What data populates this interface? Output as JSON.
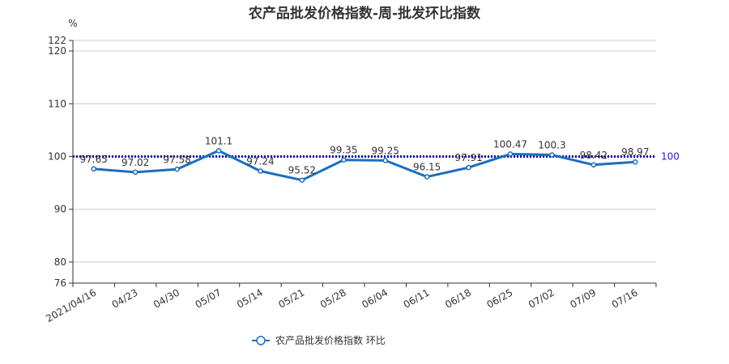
{
  "chart_data": {
    "type": "line",
    "title": "农产品批发价格指数-周-批发环比指数",
    "ylabel": "%",
    "ylim": [
      76,
      122
    ],
    "yticks": [
      76,
      80,
      90,
      100,
      110,
      120,
      122
    ],
    "grid": true,
    "legend_position": "bottom-center",
    "categories": [
      "2021/04/16",
      "04/23",
      "04/30",
      "05/07",
      "05/14",
      "05/21",
      "05/28",
      "06/04",
      "06/11",
      "06/18",
      "06/25",
      "07/02",
      "07/09",
      "07/16"
    ],
    "series": [
      {
        "name": "农产品批发价格指数  环比",
        "values": [
          97.65,
          97.02,
          97.58,
          101.1,
          97.24,
          95.52,
          99.35,
          99.25,
          96.15,
          97.91,
          100.47,
          100.3,
          98.42,
          98.97
        ],
        "labels": [
          "97.65",
          "97.02",
          "97.58",
          "101.1",
          "97.24",
          "95.52",
          "99.35",
          "99.25",
          "96.15",
          "97.91",
          "100.47",
          "100.3",
          "98.42",
          "98.97"
        ]
      }
    ],
    "reference_line": {
      "value": 100,
      "label": "100",
      "style": "dotted"
    }
  },
  "colors": {
    "series": "#1a6fbf",
    "reference": "#1010aa",
    "reference_label": "#2222cc",
    "grid": "#cccccc",
    "axis": "#333333"
  }
}
